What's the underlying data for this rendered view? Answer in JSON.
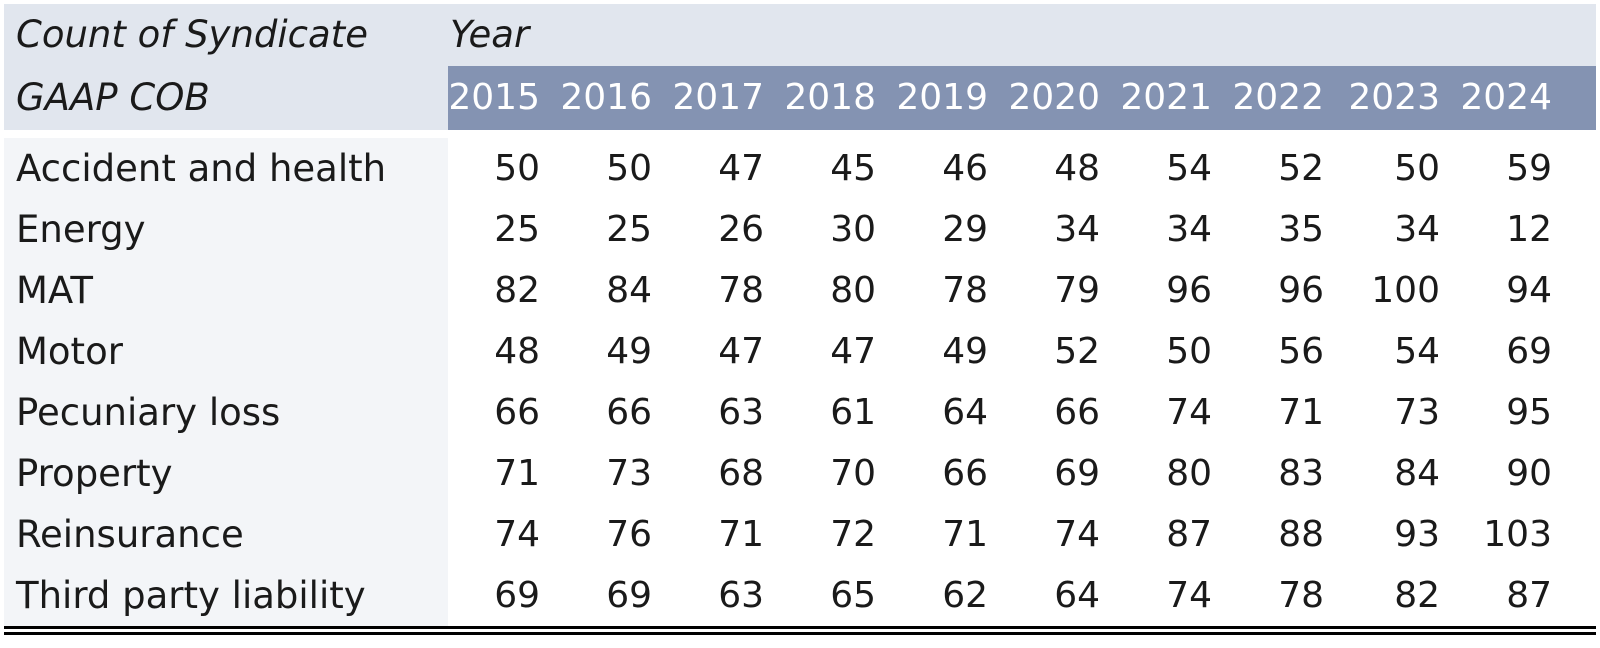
{
  "chart_data": {
    "type": "table",
    "row_field_header": "GAAP COB",
    "value_header": "Count of Syndicate",
    "column_field_header": "Year",
    "columns": [
      "2015",
      "2016",
      "2017",
      "2018",
      "2019",
      "2020",
      "2021",
      "2022",
      "2023",
      "2024"
    ],
    "rows": [
      {
        "label": "Accident and health",
        "values": [
          50,
          50,
          47,
          45,
          46,
          48,
          54,
          52,
          50,
          59
        ]
      },
      {
        "label": "Energy",
        "values": [
          25,
          25,
          26,
          30,
          29,
          34,
          34,
          35,
          34,
          12
        ]
      },
      {
        "label": "MAT",
        "values": [
          82,
          84,
          78,
          80,
          78,
          79,
          96,
          96,
          100,
          94
        ]
      },
      {
        "label": "Motor",
        "values": [
          48,
          49,
          47,
          47,
          49,
          52,
          50,
          56,
          54,
          69
        ]
      },
      {
        "label": "Pecuniary loss",
        "values": [
          66,
          66,
          63,
          61,
          64,
          66,
          74,
          71,
          73,
          95
        ]
      },
      {
        "label": "Property",
        "values": [
          71,
          73,
          68,
          70,
          66,
          69,
          80,
          83,
          84,
          90
        ]
      },
      {
        "label": "Reinsurance",
        "values": [
          74,
          76,
          71,
          72,
          71,
          74,
          87,
          88,
          93,
          103
        ]
      },
      {
        "label": "Third party liability",
        "values": [
          69,
          69,
          63,
          65,
          62,
          64,
          74,
          78,
          82,
          87
        ]
      }
    ]
  },
  "colors": {
    "header_light": "#e1e6ee",
    "header_dark": "#8493b2",
    "row_label_bg": "#f3f5f8"
  }
}
